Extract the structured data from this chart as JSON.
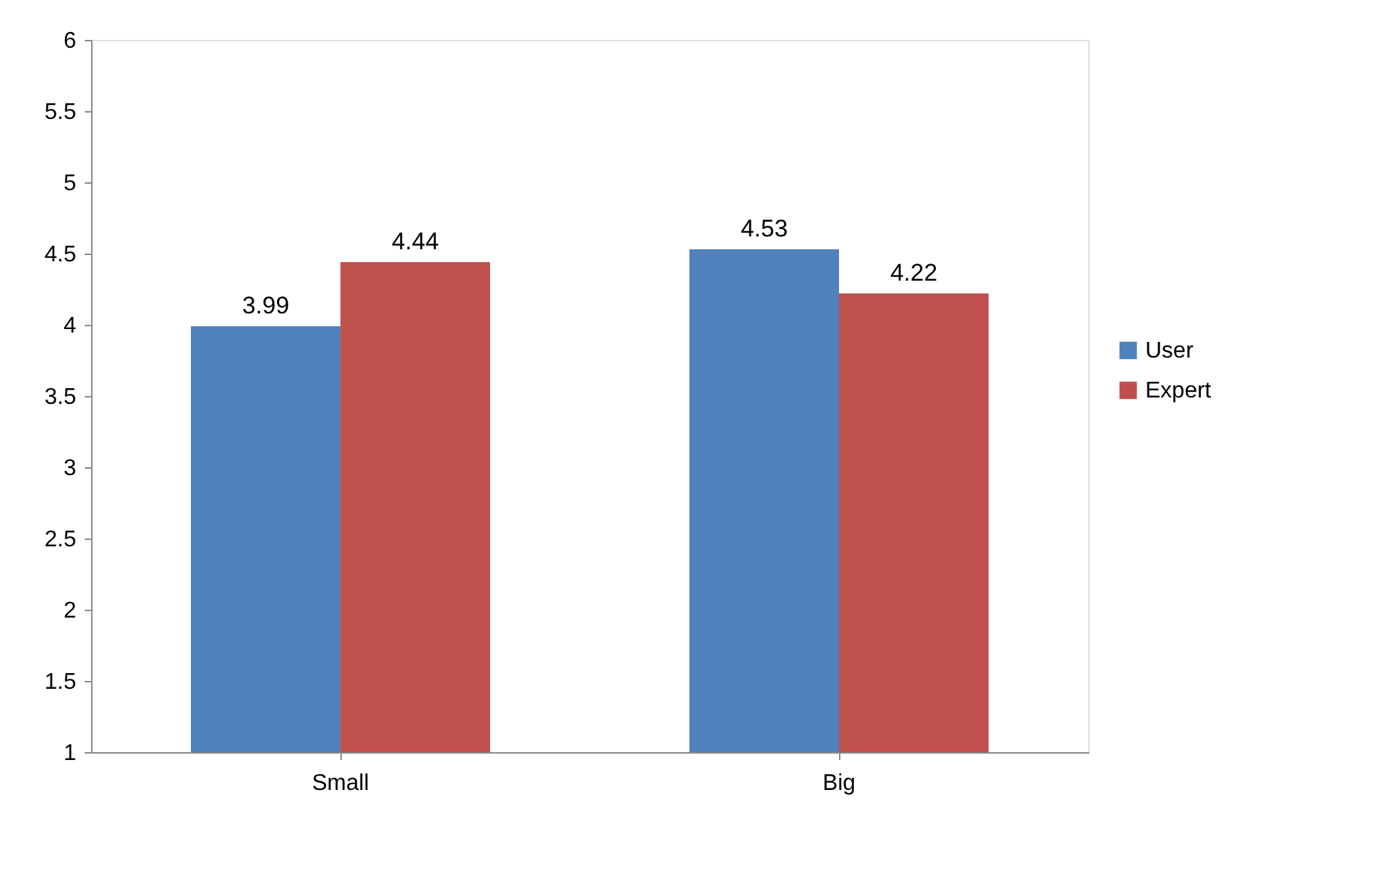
{
  "chart_data": {
    "type": "bar",
    "categories": [
      "Small",
      "Big"
    ],
    "series": [
      {
        "name": "User",
        "color": "#4f81bd",
        "values": [
          3.99,
          4.53
        ]
      },
      {
        "name": "Expert",
        "color": "#c0504d",
        "values": [
          4.44,
          4.22
        ]
      }
    ],
    "ylim": [
      1,
      6
    ],
    "yticks": [
      1,
      1.5,
      2,
      2.5,
      3,
      3.5,
      4,
      4.5,
      5,
      5.5,
      6
    ],
    "grid": false,
    "legend": "right",
    "data_labels": true
  }
}
